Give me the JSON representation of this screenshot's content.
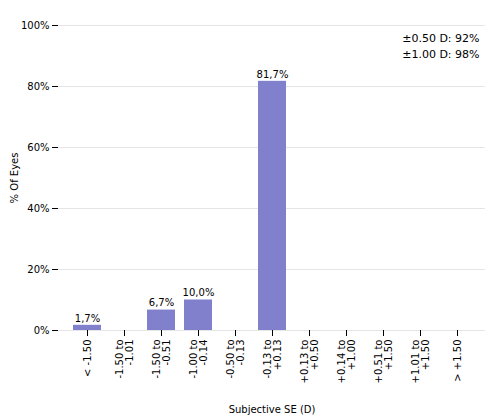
{
  "chart_data": {
    "type": "bar",
    "categories": [
      "< -1.50",
      "-1.50 to\n-1.01",
      "-1.50 to\n-0.51",
      "-1.00 to\n-0.14",
      "-0.50 to\n-0.13",
      "-0.13 to\n+0.13",
      "+0.13 to\n+0.50",
      "+0.14 to\n+1.00",
      "+0.51 to\n+1.50",
      "+1.01 to\n+1.50",
      "> +1.50"
    ],
    "values": [
      1.7,
      0.0,
      6.7,
      10.0,
      0.0,
      81.7,
      0.0,
      0.0,
      0.0,
      0.0,
      0.0
    ],
    "value_labels": [
      "1,7%",
      null,
      "6,7%",
      "10,0%",
      null,
      "81,7%",
      null,
      null,
      null,
      null,
      null
    ],
    "data_labels": true,
    "color": "#8080cc",
    "xlabel": "Subjective SE (D)",
    "ylabel": "% Of Eyes",
    "ylim": [
      0,
      100
    ],
    "yticks": [
      {
        "value": 0,
        "label": "0%"
      },
      {
        "value": 20,
        "label": "20%"
      },
      {
        "value": 40,
        "label": "40%"
      },
      {
        "value": 60,
        "label": "60%"
      },
      {
        "value": 80,
        "label": "80%"
      },
      {
        "value": 100,
        "label": "100%"
      }
    ],
    "grid": true,
    "annotation": "±0.50 D: 92%\n±1.00 D: 98%"
  }
}
